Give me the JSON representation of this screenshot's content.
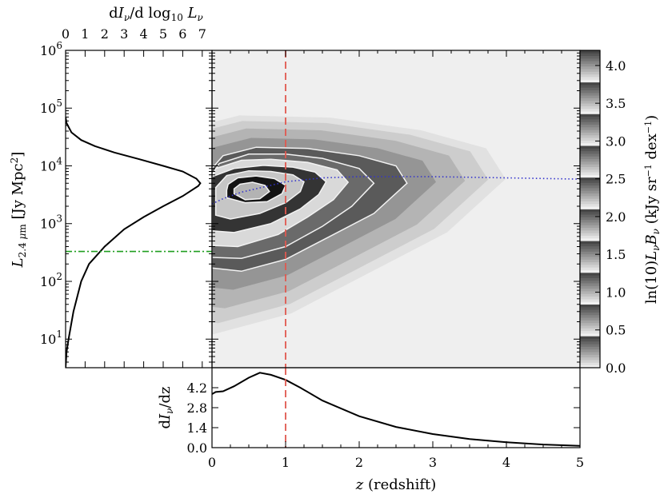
{
  "chart_data": [
    {
      "panel": "left-marginal",
      "type": "line",
      "xlabel": "dIν/d log10 Lν",
      "x_ticks": [
        "0",
        "1",
        "2",
        "3",
        "4",
        "5",
        "6",
        "7"
      ],
      "xlim": [
        0,
        7.5
      ],
      "ylabel": "L2.4 μm [Jy Mpc²]",
      "y_scale": "log",
      "ylim": [
        3.2,
        1000000
      ],
      "y_tick_labels": [
        "10^1",
        "10^2",
        "10^3",
        "10^4",
        "10^5",
        "10^6"
      ],
      "series": [
        {
          "style": "solid-black",
          "points": [
            [
              0,
              3.2
            ],
            [
              0.05,
              6
            ],
            [
              0.15,
              10
            ],
            [
              0.4,
              30
            ],
            [
              0.8,
              100
            ],
            [
              1.2,
              200
            ],
            [
              2.0,
              400
            ],
            [
              3.0,
              800
            ],
            [
              4.0,
              1300
            ],
            [
              5.0,
              2000
            ],
            [
              6.0,
              3000
            ],
            [
              6.8,
              4500
            ],
            [
              6.9,
              5000
            ],
            [
              6.7,
              6000
            ],
            [
              6.0,
              8000
            ],
            [
              5.0,
              10000
            ],
            [
              3.8,
              13000
            ],
            [
              2.5,
              17000
            ],
            [
              1.5,
              22000
            ],
            [
              0.8,
              28000
            ],
            [
              0.3,
              38000
            ],
            [
              0.05,
              55000
            ],
            [
              0,
              70000
            ]
          ]
        },
        {
          "style": "dash-dot-green",
          "y_constant": 330
        }
      ]
    },
    {
      "panel": "main-heatmap",
      "type": "heatmap",
      "xlim": [
        0,
        5
      ],
      "y_scale": "log",
      "ylim": [
        3.2,
        1000000
      ],
      "colorbar": {
        "label": "ln(10) Lν Bν (kJy sr⁻¹ dex⁻¹)",
        "range": [
          0,
          4.2
        ],
        "tick_labels": [
          "0.0",
          "0.5",
          "1.0",
          "1.5",
          "2.0",
          "2.5",
          "3.0",
          "3.5",
          "4.0"
        ]
      },
      "contours": [
        {
          "level": 0.5,
          "x": [
            0,
            0.4,
            1.0,
            1.6,
            2.2,
            2.65,
            2.5,
            2.0,
            1.3,
            0.6,
            0.15,
            0
          ],
          "y": [
            170,
            150,
            240,
            600,
            1500,
            5000,
            10000,
            15000,
            20000,
            21000,
            15000,
            9000
          ]
        },
        {
          "level": 1.0,
          "x": [
            0,
            0.4,
            1.0,
            1.5,
            1.9,
            2.2,
            2.0,
            1.5,
            1.0,
            0.5,
            0.1,
            0
          ],
          "y": [
            260,
            250,
            400,
            900,
            2000,
            5000,
            9000,
            13500,
            16000,
            16000,
            11000,
            7000
          ]
        },
        {
          "level": 1.5,
          "x": [
            0,
            0.35,
            0.9,
            1.3,
            1.65,
            1.85,
            1.7,
            1.3,
            0.8,
            0.4,
            0.05,
            0
          ],
          "y": [
            420,
            400,
            650,
            1300,
            2600,
            5200,
            8500,
            11500,
            13000,
            12500,
            9000,
            6200
          ]
        },
        {
          "level": 2.0,
          "x": [
            0,
            0.3,
            0.8,
            1.2,
            1.45,
            1.55,
            1.4,
            1.1,
            0.7,
            0.3,
            0,
            0
          ],
          "y": [
            750,
            700,
            1000,
            1800,
            3200,
            5300,
            7800,
            9500,
            10200,
            9000,
            6500,
            5500
          ]
        },
        {
          "level": 2.5,
          "x": [
            0.05,
            0.25,
            0.65,
            1.0,
            1.2,
            1.25,
            1.1,
            0.8,
            0.5,
            0.2,
            0.05
          ],
          "y": [
            1400,
            1200,
            1500,
            2300,
            3600,
            5300,
            7000,
            8000,
            8200,
            6800,
            4200
          ]
        },
        {
          "level": 3.0,
          "x": [
            0.2,
            0.45,
            0.75,
            0.95,
            1.0,
            0.85,
            0.6,
            0.35,
            0.22,
            0.2
          ],
          "y": [
            2800,
            2300,
            2400,
            3300,
            4600,
            6000,
            6700,
            6200,
            4800,
            3800
          ]
        },
        {
          "level": 3.5,
          "x": [
            0.3,
            0.45,
            0.65,
            0.78,
            0.72,
            0.55,
            0.38,
            0.3
          ],
          "y": [
            3300,
            2600,
            2700,
            3600,
            4600,
            5200,
            4800,
            4000
          ]
        }
      ],
      "series": [
        {
          "style": "dotted-blue",
          "points": [
            [
              0,
              2200
            ],
            [
              0.15,
              2700
            ],
            [
              0.4,
              3500
            ],
            [
              0.7,
              4300
            ],
            [
              1.0,
              5300
            ],
            [
              1.5,
              6200
            ],
            [
              2.0,
              6500
            ],
            [
              3.0,
              6500
            ],
            [
              4.0,
              6200
            ],
            [
              5.0,
              5900
            ]
          ]
        },
        {
          "style": "dashed-red-vertical",
          "x_constant": 1.0
        }
      ]
    },
    {
      "panel": "bottom-marginal",
      "type": "line",
      "xlabel": "z (redshift)",
      "x_ticks": [
        "0",
        "1",
        "2",
        "3",
        "4",
        "5"
      ],
      "xlim": [
        0,
        5
      ],
      "ylabel": "dIν/dz",
      "y_ticks": [
        "0.0",
        "1.4",
        "2.8",
        "4.2"
      ],
      "ylim": [
        0,
        5.6
      ],
      "series": [
        {
          "style": "solid-black",
          "points": [
            [
              0,
              3.75
            ],
            [
              0.05,
              3.9
            ],
            [
              0.15,
              3.95
            ],
            [
              0.3,
              4.3
            ],
            [
              0.5,
              4.9
            ],
            [
              0.65,
              5.25
            ],
            [
              0.8,
              5.1
            ],
            [
              1.0,
              4.75
            ],
            [
              1.2,
              4.2
            ],
            [
              1.5,
              3.3
            ],
            [
              2.0,
              2.2
            ],
            [
              2.5,
              1.45
            ],
            [
              3.0,
              0.95
            ],
            [
              3.5,
              0.6
            ],
            [
              4.0,
              0.38
            ],
            [
              4.5,
              0.22
            ],
            [
              5.0,
              0.13
            ]
          ]
        },
        {
          "style": "dashed-red-vertical",
          "x_constant": 1.0
        }
      ]
    }
  ],
  "colors": {
    "red_dashed": "#e0584f",
    "green_dashdot": "#1f9e1f",
    "blue_dotted": "#3333cc",
    "line_black": "#000000"
  }
}
